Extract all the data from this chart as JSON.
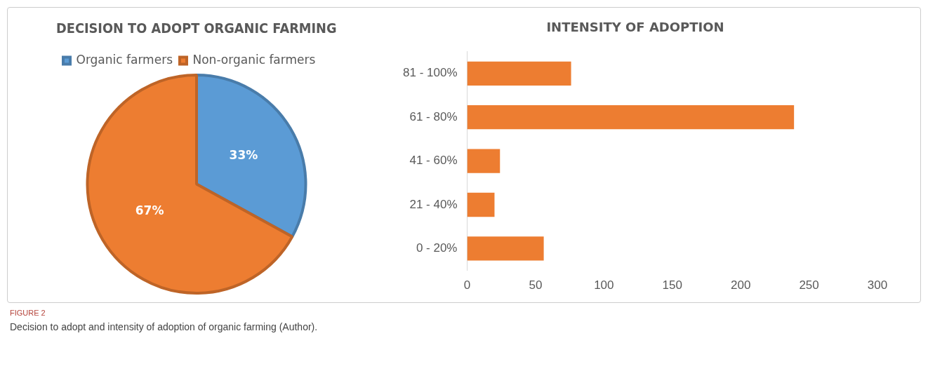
{
  "chart_data": [
    {
      "type": "pie",
      "title": "DECISION TO ADOPT ORGANIC FARMING",
      "categories": [
        "Organic farmers",
        "Non-organic farmers"
      ],
      "values": [
        33,
        67
      ],
      "colors": [
        "#5b9bd5",
        "#ed7d31"
      ],
      "value_labels": [
        "33%",
        "67%"
      ],
      "legend": "top left"
    },
    {
      "type": "bar",
      "orientation": "horizontal",
      "title": "INTENSITY OF ADOPTION",
      "categories": [
        "81 - 100%",
        "61 - 80%",
        "41 - 60%",
        "21 - 40%",
        "0 - 20%"
      ],
      "values": [
        76,
        239,
        24,
        20,
        56
      ],
      "color": "#ed7d31",
      "xlim": [
        0,
        300
      ],
      "xticks": [
        0,
        50,
        100,
        150,
        200,
        250,
        300
      ],
      "grid": false,
      "legend": false,
      "annotations": [
        "FIGURE 2",
        "Decision to adopt and intensity of adoption of organic farming (Author)."
      ]
    }
  ]
}
